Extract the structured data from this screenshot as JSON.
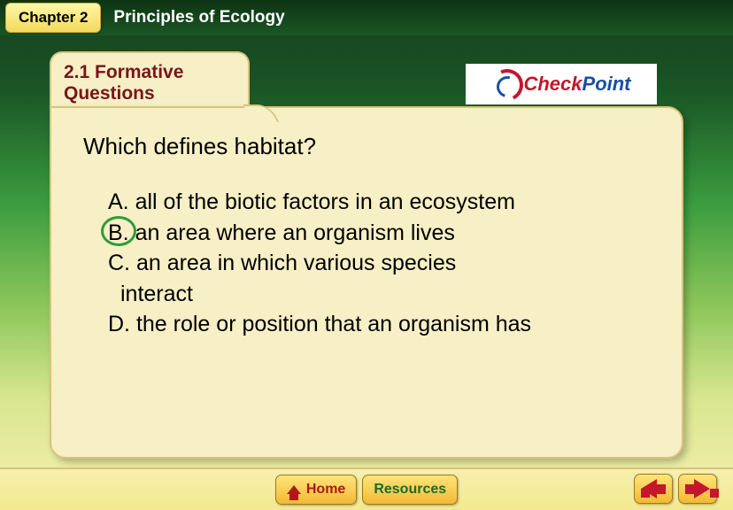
{
  "header": {
    "chapter_label": "Chapter 2",
    "chapter_title": "Principles of Ecology"
  },
  "tab": {
    "section_label": "2.1 Formative Questions"
  },
  "checkpoint": {
    "text_check": "Check",
    "text_point": "Point"
  },
  "question": "Which defines habitat?",
  "answers": [
    {
      "letter": "A.",
      "text": "all of the biotic factors in an ecosystem",
      "circled": false
    },
    {
      "letter": "B.",
      "text": "an area where an organism lives",
      "circled": true
    },
    {
      "letter": "C.",
      "text": "an area in which various species",
      "circled": false,
      "continuation": "interact"
    },
    {
      "letter": "D.",
      "text": "the role or position that an organism has",
      "circled": false
    }
  ],
  "bottom": {
    "home_label": "Home",
    "resources_label": "Resources"
  },
  "colors": {
    "accent_red": "#c4172c",
    "accent_blue": "#1a4fa3",
    "accent_green": "#2e9b3a",
    "folder_bg": "#f7efc6",
    "tab_text": "#7a1517"
  }
}
